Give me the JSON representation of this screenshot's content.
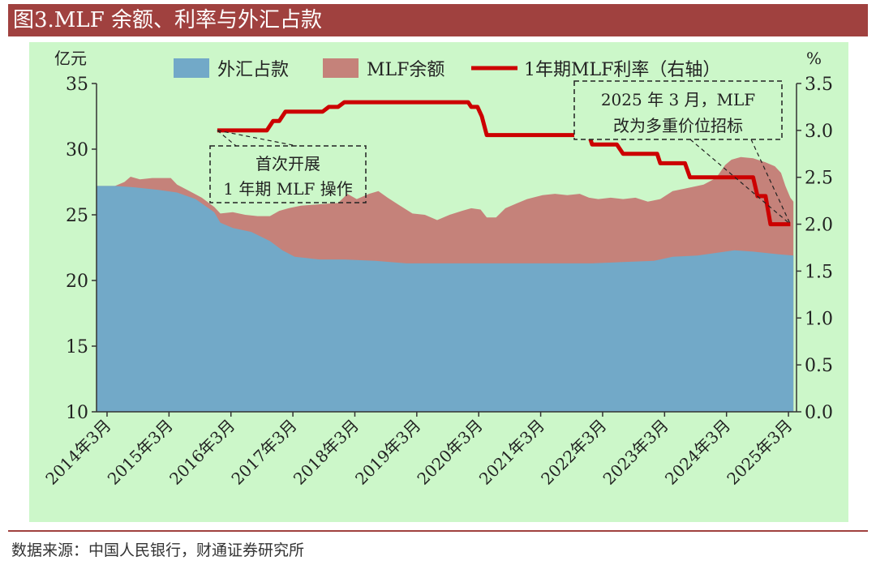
{
  "title": "图3.MLF 余额、利率与外汇占款",
  "source": "数据来源：中国人民银行，财通证券研究所",
  "colors": {
    "fx": "#72a9c8",
    "mlf": "#c5827a",
    "rate": "#cc0000",
    "background": "#ccf7c9",
    "brand": "#a0413f"
  },
  "chart_data": {
    "type": "area",
    "left_unit": "亿元",
    "right_unit": "%",
    "ylim": [
      10,
      35
    ],
    "y2lim": [
      0.0,
      3.5
    ],
    "yticks": [
      "10",
      "15",
      "20",
      "25",
      "30",
      "35"
    ],
    "y2ticks": [
      "0.0",
      "0.5",
      "1.0",
      "1.5",
      "2.0",
      "2.5",
      "3.0",
      "3.5"
    ],
    "xlim": [
      2014.0,
      2025.3
    ],
    "xticks": [
      {
        "x": 2014.17,
        "label": "2014年3月"
      },
      {
        "x": 2015.17,
        "label": "2015年3月"
      },
      {
        "x": 2016.17,
        "label": "2016年3月"
      },
      {
        "x": 2017.17,
        "label": "2017年3月"
      },
      {
        "x": 2018.17,
        "label": "2018年3月"
      },
      {
        "x": 2019.17,
        "label": "2019年3月"
      },
      {
        "x": 2020.17,
        "label": "2020年3月"
      },
      {
        "x": 2021.17,
        "label": "2021年3月"
      },
      {
        "x": 2022.17,
        "label": "2022年3月"
      },
      {
        "x": 2023.17,
        "label": "2023年3月"
      },
      {
        "x": 2024.17,
        "label": "2024年3月"
      },
      {
        "x": 2025.17,
        "label": "2025年3月"
      }
    ],
    "legend": [
      "外汇占款",
      "MLF余额",
      "1年期MLF利率（右轴）"
    ],
    "legend_position": "top",
    "series": [
      {
        "name": "外汇占款",
        "kind": "area",
        "points": [
          [
            2014.0,
            27.2
          ],
          [
            2014.3,
            27.2
          ],
          [
            2014.6,
            27.1
          ],
          [
            2015.0,
            26.9
          ],
          [
            2015.3,
            26.7
          ],
          [
            2015.6,
            26.2
          ],
          [
            2015.9,
            25.2
          ],
          [
            2016.0,
            24.4
          ],
          [
            2016.2,
            24.0
          ],
          [
            2016.5,
            23.7
          ],
          [
            2016.8,
            23.0
          ],
          [
            2017.0,
            22.3
          ],
          [
            2017.2,
            21.8
          ],
          [
            2017.6,
            21.6
          ],
          [
            2018.0,
            21.6
          ],
          [
            2018.5,
            21.5
          ],
          [
            2019.0,
            21.3
          ],
          [
            2019.5,
            21.3
          ],
          [
            2020.0,
            21.3
          ],
          [
            2020.5,
            21.3
          ],
          [
            2021.0,
            21.3
          ],
          [
            2021.5,
            21.3
          ],
          [
            2022.0,
            21.3
          ],
          [
            2022.5,
            21.4
          ],
          [
            2023.0,
            21.5
          ],
          [
            2023.3,
            21.8
          ],
          [
            2023.7,
            21.9
          ],
          [
            2024.0,
            22.1
          ],
          [
            2024.3,
            22.3
          ],
          [
            2024.6,
            22.2
          ],
          [
            2025.0,
            22.0
          ],
          [
            2025.25,
            21.9
          ]
        ]
      },
      {
        "name": "MLF余额",
        "kind": "stacked_top",
        "points": [
          [
            2014.0,
            27.2
          ],
          [
            2014.3,
            27.2
          ],
          [
            2014.45,
            27.5
          ],
          [
            2014.55,
            27.9
          ],
          [
            2014.7,
            27.7
          ],
          [
            2014.9,
            27.8
          ],
          [
            2015.1,
            27.8
          ],
          [
            2015.2,
            27.8
          ],
          [
            2015.3,
            27.3
          ],
          [
            2015.5,
            26.8
          ],
          [
            2015.7,
            26.3
          ],
          [
            2015.9,
            25.6
          ],
          [
            2016.0,
            25.1
          ],
          [
            2016.2,
            25.2
          ],
          [
            2016.4,
            25.0
          ],
          [
            2016.6,
            24.9
          ],
          [
            2016.8,
            24.9
          ],
          [
            2016.95,
            25.3
          ],
          [
            2017.1,
            25.5
          ],
          [
            2017.3,
            25.7
          ],
          [
            2017.6,
            25.8
          ],
          [
            2017.9,
            25.9
          ],
          [
            2018.05,
            26.6
          ],
          [
            2018.2,
            26.2
          ],
          [
            2018.4,
            26.6
          ],
          [
            2018.55,
            26.8
          ],
          [
            2018.7,
            26.3
          ],
          [
            2018.9,
            25.7
          ],
          [
            2019.1,
            25.1
          ],
          [
            2019.3,
            25.0
          ],
          [
            2019.5,
            24.6
          ],
          [
            2019.7,
            25.0
          ],
          [
            2019.9,
            25.3
          ],
          [
            2020.05,
            25.5
          ],
          [
            2020.2,
            25.4
          ],
          [
            2020.3,
            24.8
          ],
          [
            2020.45,
            24.8
          ],
          [
            2020.6,
            25.5
          ],
          [
            2020.75,
            25.8
          ],
          [
            2020.95,
            26.2
          ],
          [
            2021.2,
            26.5
          ],
          [
            2021.4,
            26.6
          ],
          [
            2021.6,
            26.5
          ],
          [
            2021.8,
            26.6
          ],
          [
            2021.95,
            26.3
          ],
          [
            2022.1,
            26.2
          ],
          [
            2022.3,
            26.3
          ],
          [
            2022.5,
            26.2
          ],
          [
            2022.7,
            26.3
          ],
          [
            2022.9,
            26.0
          ],
          [
            2023.1,
            26.2
          ],
          [
            2023.3,
            26.8
          ],
          [
            2023.5,
            27.0
          ],
          [
            2023.8,
            27.3
          ],
          [
            2024.0,
            27.8
          ],
          [
            2024.15,
            28.8
          ],
          [
            2024.25,
            29.2
          ],
          [
            2024.4,
            29.4
          ],
          [
            2024.6,
            29.3
          ],
          [
            2024.8,
            29.0
          ],
          [
            2024.95,
            28.7
          ],
          [
            2025.05,
            28.2
          ],
          [
            2025.12,
            27.2
          ],
          [
            2025.2,
            26.3
          ],
          [
            2025.25,
            26.0
          ]
        ]
      },
      {
        "name": "1年期MLF利率（右轴）",
        "kind": "line_right",
        "points": [
          [
            2015.95,
            3.0
          ],
          [
            2016.75,
            3.0
          ],
          [
            2016.85,
            3.1
          ],
          [
            2016.95,
            3.1
          ],
          [
            2017.05,
            3.2
          ],
          [
            2017.65,
            3.2
          ],
          [
            2017.75,
            3.25
          ],
          [
            2017.9,
            3.25
          ],
          [
            2018.0,
            3.3
          ],
          [
            2020.0,
            3.3
          ],
          [
            2020.05,
            3.25
          ],
          [
            2020.15,
            3.25
          ],
          [
            2020.22,
            3.15
          ],
          [
            2020.3,
            2.95
          ],
          [
            2021.95,
            2.95
          ],
          [
            2022.0,
            2.85
          ],
          [
            2022.4,
            2.85
          ],
          [
            2022.5,
            2.75
          ],
          [
            2023.05,
            2.75
          ],
          [
            2023.1,
            2.65
          ],
          [
            2023.5,
            2.65
          ],
          [
            2023.58,
            2.5
          ],
          [
            2024.6,
            2.5
          ],
          [
            2024.67,
            2.3
          ],
          [
            2024.8,
            2.3
          ],
          [
            2024.88,
            2.0
          ],
          [
            2025.2,
            2.0
          ]
        ]
      }
    ],
    "annotations": [
      {
        "lines": [
          "首次开展",
          "1 年期 MLF 操作"
        ]
      },
      {
        "lines": [
          "2025 年 3 月，MLF",
          "改为多重价位招标"
        ]
      }
    ]
  }
}
